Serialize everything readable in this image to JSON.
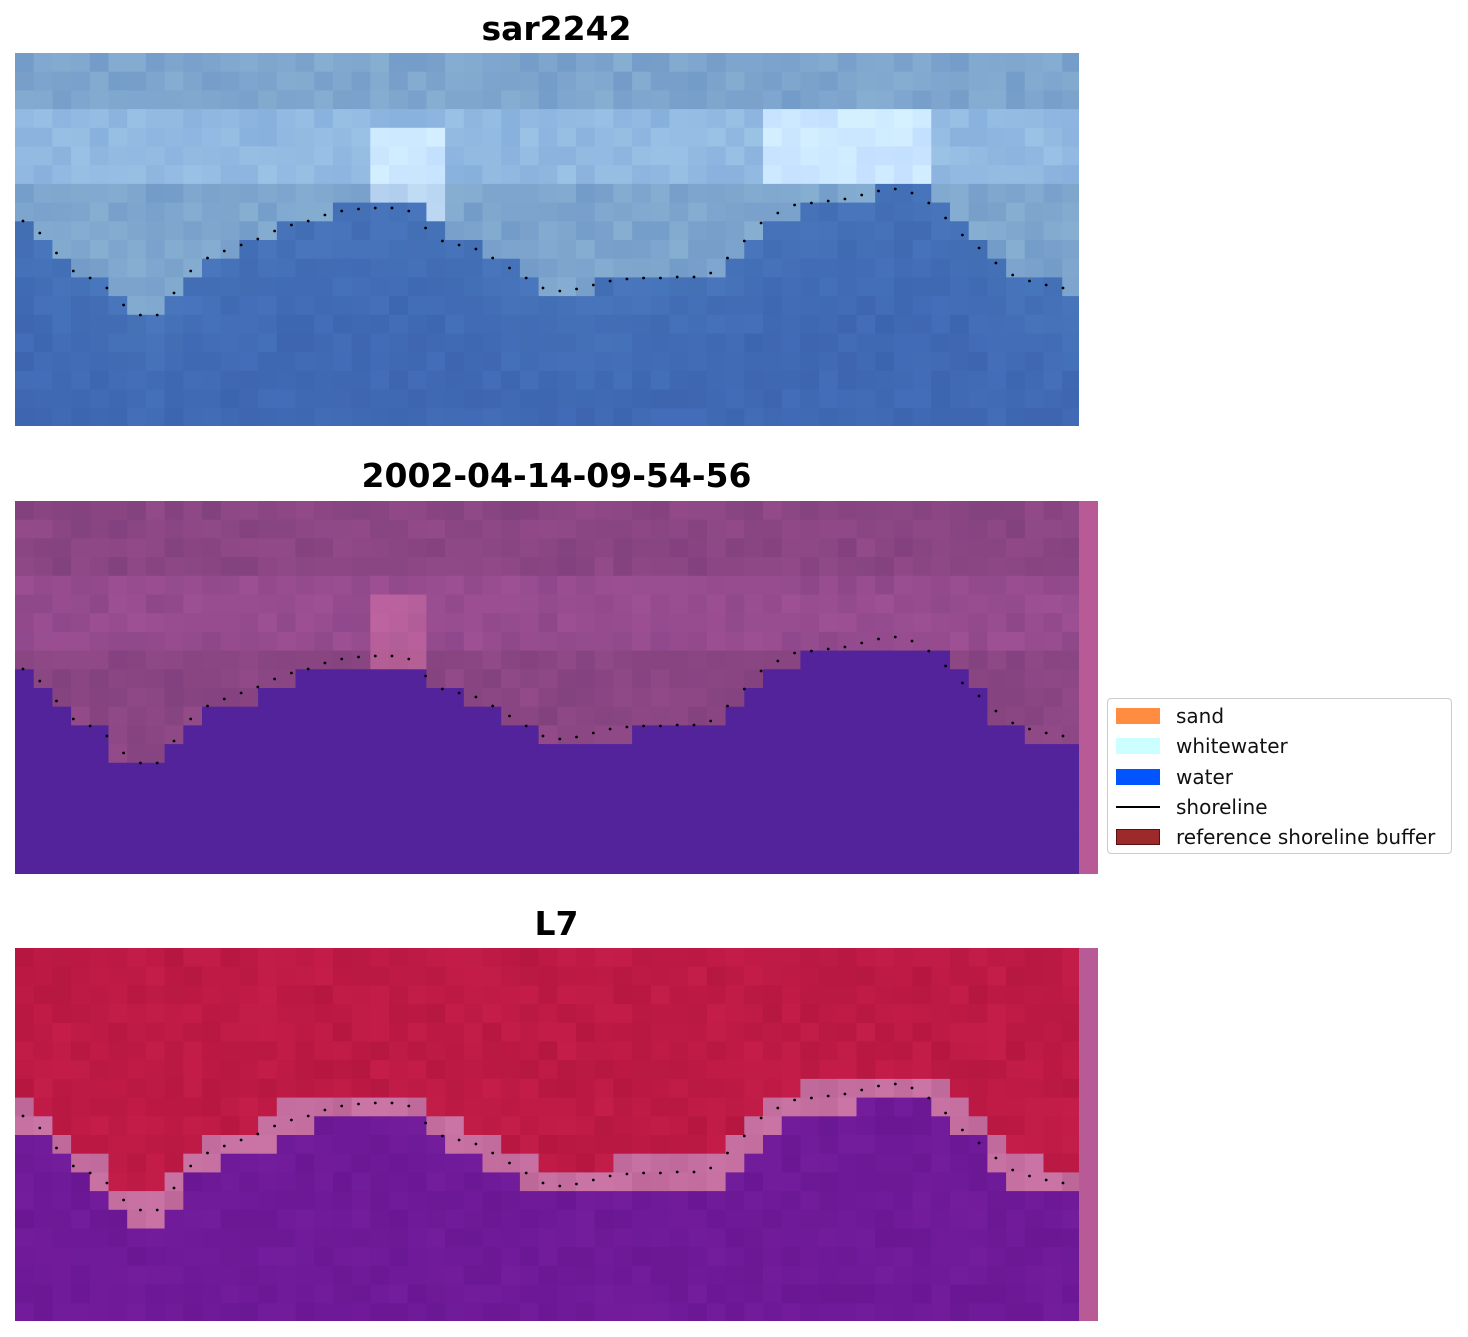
{
  "panels": [
    {
      "title": "sar2242"
    },
    {
      "title": "2002-04-14-09-54-56"
    },
    {
      "title": "L7"
    }
  ],
  "legend": {
    "items": [
      {
        "label": "sand",
        "color": "#ff8c40",
        "type": "patch"
      },
      {
        "label": "whitewater",
        "color": "#ccffff",
        "type": "patch"
      },
      {
        "label": "water",
        "color": "#0055ff",
        "type": "patch"
      },
      {
        "label": "shoreline",
        "color": "#000000",
        "type": "line"
      },
      {
        "label": "reference shoreline buffer",
        "color": "#9c2a2a",
        "type": "patch"
      }
    ]
  },
  "colors": {
    "sar_water": "#3f6fb4",
    "sar_land": "#7fa7cc",
    "class_land": "#8a4683",
    "class_water": "#52239a",
    "mndwi_land": "#bd1a45",
    "mndwi_water": "#6f1a98",
    "buffer_strip": "#b85a95"
  }
}
